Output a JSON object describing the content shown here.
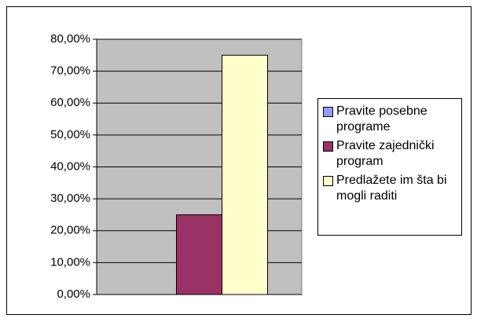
{
  "chart_data": {
    "type": "bar",
    "categories": [
      null
    ],
    "series": [
      {
        "name": "Pravite posebne programe",
        "color": "#9999ff",
        "values": [
          0
        ]
      },
      {
        "name": "Pravite zajednički program",
        "color": "#993366",
        "values": [
          25
        ]
      },
      {
        "name": "Predlažete im šta bi mogli raditi",
        "color": "#ffffcc",
        "values": [
          75
        ]
      }
    ],
    "ylim": [
      0,
      80
    ],
    "yticks": [
      {
        "value": 0,
        "label": "0,00%"
      },
      {
        "value": 10,
        "label": "10,00%"
      },
      {
        "value": 20,
        "label": "20,00%"
      },
      {
        "value": 30,
        "label": "30,00%"
      },
      {
        "value": 40,
        "label": "40,00%"
      },
      {
        "value": 50,
        "label": "50,00%"
      },
      {
        "value": 60,
        "label": "60,00%"
      },
      {
        "value": 70,
        "label": "70,00%"
      },
      {
        "value": 80,
        "label": "80,00%"
      }
    ],
    "grid": true,
    "legend": "right",
    "plot_background": "#c0c0c0"
  }
}
